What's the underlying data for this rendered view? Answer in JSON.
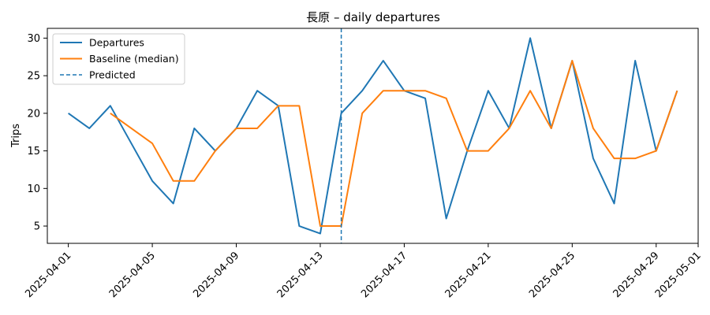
{
  "chart_data": {
    "type": "line",
    "title": "長原 – daily departures",
    "xlabel": "",
    "ylabel": "Trips",
    "x_type": "date",
    "x": [
      "2025-04-01",
      "2025-04-02",
      "2025-04-03",
      "2025-04-04",
      "2025-04-05",
      "2025-04-06",
      "2025-04-07",
      "2025-04-08",
      "2025-04-09",
      "2025-04-10",
      "2025-04-11",
      "2025-04-12",
      "2025-04-13",
      "2025-04-14",
      "2025-04-15",
      "2025-04-16",
      "2025-04-17",
      "2025-04-18",
      "2025-04-19",
      "2025-04-20",
      "2025-04-21",
      "2025-04-22",
      "2025-04-23",
      "2025-04-24",
      "2025-04-25",
      "2025-04-26",
      "2025-04-27",
      "2025-04-28",
      "2025-04-29",
      "2025-04-30"
    ],
    "xlim": [
      "2025-03-31",
      "2025-05-01"
    ],
    "ylim": [
      2.7,
      31.3
    ],
    "xticks": [
      "2025-04-01",
      "2025-04-05",
      "2025-04-09",
      "2025-04-13",
      "2025-04-17",
      "2025-04-21",
      "2025-04-25",
      "2025-04-29",
      "2025-05-01"
    ],
    "yticks": [
      5,
      10,
      15,
      20,
      25,
      30
    ],
    "series": [
      {
        "name": "Departures",
        "color": "#1f77b4",
        "style": "solid",
        "values": [
          20,
          18,
          21,
          16,
          11,
          8,
          18,
          15,
          18,
          23,
          21,
          5,
          4,
          20,
          23,
          27,
          23,
          22,
          6,
          15,
          23,
          18,
          30,
          18,
          27,
          14,
          8,
          27,
          15,
          23
        ]
      },
      {
        "name": "Baseline (median)",
        "color": "#ff7f0e",
        "style": "solid",
        "values": [
          null,
          null,
          20,
          18,
          16,
          11,
          11,
          15,
          18,
          18,
          21,
          21,
          5,
          5,
          20,
          23,
          23,
          23,
          22,
          15,
          15,
          18,
          23,
          18,
          27,
          18,
          14,
          14,
          15,
          23
        ]
      }
    ],
    "vline": {
      "name": "Predicted",
      "x": "2025-04-14",
      "color": "#1f77b4",
      "style": "dashed"
    },
    "legend": {
      "position": "top-left",
      "entries": [
        "Departures",
        "Baseline (median)",
        "Predicted"
      ]
    },
    "grid": false
  }
}
